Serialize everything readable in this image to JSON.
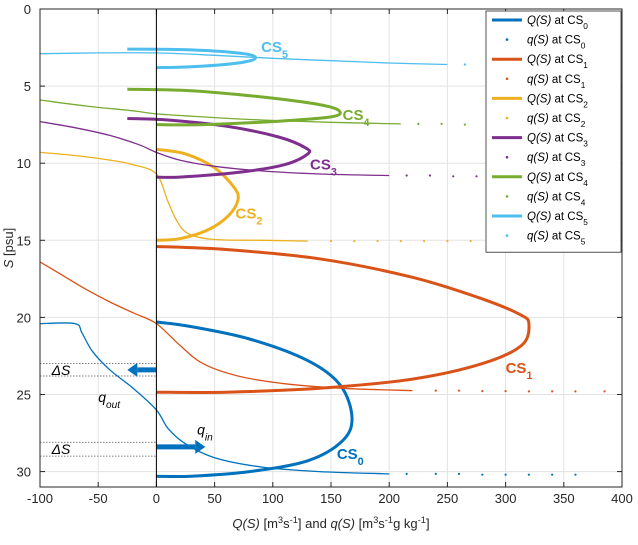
{
  "chart_data": {
    "type": "line",
    "xlabel": "Q(S) [m³s⁻¹]  and  q(S) [m³s⁻¹g kg⁻¹]",
    "xlabel_parts": [
      "Q(S)",
      " [m",
      "3",
      "s",
      "-1",
      "]  and  ",
      "q(S)",
      " [m",
      "3",
      "s",
      "-1",
      "g kg",
      "-1",
      "]"
    ],
    "ylabel_parts": [
      "S",
      " [psu]"
    ],
    "xlim": [
      -100,
      400
    ],
    "ylim": [
      0,
      31
    ],
    "y_reversed": true,
    "grid": true,
    "legend_position": "top-right",
    "xticks": [
      "-100",
      "-50",
      "0",
      "50",
      "100",
      "150",
      "200",
      "250",
      "300",
      "350",
      "400"
    ],
    "yticks": [
      "0",
      "5",
      "10",
      "15",
      "20",
      "25",
      "30"
    ],
    "series": [
      {
        "id": "cs0",
        "color": "#0072BD",
        "legend": {
          "Q": [
            "Q(S)",
            " at CS",
            "0"
          ],
          "q": [
            "q(S)",
            " at CS",
            "0"
          ]
        },
        "label": [
          "CS",
          "0"
        ],
        "Q": [
          [
            0,
            20.3
          ],
          [
            30,
            20.6
          ],
          [
            80,
            21.4
          ],
          [
            130,
            22.8
          ],
          [
            158,
            24.4
          ],
          [
            168,
            26.5
          ],
          [
            160,
            28.0
          ],
          [
            130,
            29.3
          ],
          [
            80,
            30.0
          ],
          [
            30,
            30.3
          ],
          [
            0,
            30.3
          ]
        ],
        "q_line": [
          [
            -100,
            20.4
          ],
          [
            -70,
            20.4
          ],
          [
            -64,
            21.0
          ],
          [
            -55,
            22.2
          ],
          [
            -40,
            23.4
          ],
          [
            -20,
            24.6
          ],
          [
            0,
            26.0
          ],
          [
            10,
            27.2
          ],
          [
            25,
            28.2
          ],
          [
            50,
            29.1
          ],
          [
            90,
            29.7
          ],
          [
            140,
            30.0
          ],
          [
            200,
            30.15
          ]
        ],
        "q_dots": [
          [
            215,
            30.15
          ],
          [
            240,
            30.15
          ],
          [
            260,
            30.15
          ],
          [
            280,
            30.2
          ],
          [
            300,
            30.2
          ],
          [
            320,
            30.2
          ],
          [
            340,
            30.2
          ],
          [
            360,
            30.2
          ]
        ]
      },
      {
        "id": "cs1",
        "color": "#D95319",
        "legend": {
          "Q": [
            "Q(S)",
            " at CS",
            "1"
          ],
          "q": [
            "q(S)",
            " at CS",
            "1"
          ]
        },
        "label": [
          "CS",
          "1"
        ],
        "Q": [
          [
            0,
            15.4
          ],
          [
            60,
            15.6
          ],
          [
            140,
            16.2
          ],
          [
            220,
            17.4
          ],
          [
            280,
            18.8
          ],
          [
            312,
            19.8
          ],
          [
            320,
            20.4
          ],
          [
            314,
            21.8
          ],
          [
            280,
            23.0
          ],
          [
            220,
            24.0
          ],
          [
            140,
            24.6
          ],
          [
            60,
            24.85
          ],
          [
            0,
            24.85
          ]
        ],
        "q_line": [
          [
            -100,
            16.4
          ],
          [
            -80,
            17.3
          ],
          [
            -60,
            18.2
          ],
          [
            -40,
            19.0
          ],
          [
            -20,
            19.7
          ],
          [
            0,
            20.4
          ],
          [
            20,
            21.8
          ],
          [
            40,
            23.0
          ],
          [
            70,
            23.8
          ],
          [
            110,
            24.3
          ],
          [
            160,
            24.6
          ],
          [
            220,
            24.75
          ]
        ],
        "q_dots": [
          [
            240,
            24.75
          ],
          [
            260,
            24.75
          ],
          [
            280,
            24.78
          ],
          [
            300,
            24.78
          ],
          [
            320,
            24.8
          ],
          [
            340,
            24.8
          ],
          [
            360,
            24.8
          ],
          [
            385,
            24.8
          ]
        ]
      },
      {
        "id": "cs2",
        "color": "#EDB120",
        "legend": {
          "Q": [
            "Q(S)",
            " at CS",
            "2"
          ],
          "q": [
            "q(S)",
            " at CS",
            "2"
          ]
        },
        "label": [
          "CS",
          "2"
        ],
        "Q": [
          [
            0,
            9.1
          ],
          [
            25,
            9.4
          ],
          [
            50,
            10.3
          ],
          [
            67,
            11.6
          ],
          [
            70,
            12.4
          ],
          [
            62,
            13.4
          ],
          [
            45,
            14.3
          ],
          [
            20,
            14.9
          ],
          [
            0,
            15.0
          ]
        ],
        "q_line": [
          [
            -100,
            9.3
          ],
          [
            -70,
            9.5
          ],
          [
            -40,
            9.8
          ],
          [
            -20,
            10.1
          ],
          [
            0,
            10.7
          ],
          [
            10,
            12.5
          ],
          [
            18,
            13.8
          ],
          [
            28,
            14.6
          ],
          [
            50,
            14.95
          ],
          [
            90,
            15.0
          ],
          [
            130,
            15.05
          ]
        ],
        "q_dots": [
          [
            150,
            15.05
          ],
          [
            170,
            15.05
          ],
          [
            190,
            15.05
          ],
          [
            210,
            15.05
          ],
          [
            230,
            15.05
          ],
          [
            250,
            15.05
          ],
          [
            270,
            15.05
          ]
        ]
      },
      {
        "id": "cs3",
        "color": "#7E2F8E",
        "legend": {
          "Q": [
            "Q(S)",
            " at CS",
            "3"
          ],
          "q": [
            "q(S)",
            " at CS",
            "3"
          ]
        },
        "label": [
          "CS",
          "3"
        ],
        "Q": [
          [
            -25,
            7.1
          ],
          [
            10,
            7.2
          ],
          [
            60,
            7.6
          ],
          [
            105,
            8.3
          ],
          [
            128,
            9.0
          ],
          [
            130,
            9.4
          ],
          [
            110,
            10.1
          ],
          [
            70,
            10.6
          ],
          [
            20,
            10.9
          ],
          [
            0,
            10.9
          ]
        ],
        "q_line": [
          [
            -100,
            7.3
          ],
          [
            -70,
            7.7
          ],
          [
            -40,
            8.2
          ],
          [
            -15,
            8.8
          ],
          [
            0,
            9.3
          ],
          [
            20,
            9.8
          ],
          [
            50,
            10.2
          ],
          [
            90,
            10.5
          ],
          [
            140,
            10.7
          ],
          [
            200,
            10.8
          ]
        ],
        "q_dots": [
          [
            215,
            10.8
          ],
          [
            235,
            10.8
          ],
          [
            255,
            10.85
          ],
          [
            275,
            10.85
          ],
          [
            295,
            10.85
          ],
          [
            315,
            10.85
          ],
          [
            335,
            10.85
          ],
          [
            355,
            10.85
          ]
        ]
      },
      {
        "id": "cs4",
        "color": "#77AC30",
        "legend": {
          "Q": [
            "Q(S)",
            " at CS",
            "4"
          ],
          "q": [
            "q(S)",
            " at CS",
            "4"
          ]
        },
        "label": [
          "CS",
          "4"
        ],
        "Q": [
          [
            -25,
            5.2
          ],
          [
            30,
            5.3
          ],
          [
            90,
            5.7
          ],
          [
            140,
            6.2
          ],
          [
            157,
            6.6
          ],
          [
            150,
            7.0
          ],
          [
            100,
            7.3
          ],
          [
            40,
            7.5
          ],
          [
            0,
            7.5
          ]
        ],
        "q_line": [
          [
            -100,
            5.9
          ],
          [
            -60,
            6.3
          ],
          [
            -20,
            6.6
          ],
          [
            0,
            6.8
          ],
          [
            40,
            7.0
          ],
          [
            90,
            7.2
          ],
          [
            150,
            7.35
          ],
          [
            210,
            7.45
          ]
        ],
        "q_dots": [
          [
            225,
            7.45
          ],
          [
            245,
            7.45
          ],
          [
            265,
            7.5
          ],
          [
            285,
            7.5
          ],
          [
            305,
            7.5
          ],
          [
            325,
            7.5
          ],
          [
            345,
            7.55
          ]
        ]
      },
      {
        "id": "cs5",
        "color": "#4DBEEE",
        "legend": {
          "Q": [
            "Q(S)",
            " at CS",
            "5"
          ],
          "q": [
            "q(S)",
            " at CS",
            "5"
          ]
        },
        "label": [
          "CS",
          "5"
        ],
        "Q": [
          [
            -25,
            2.6
          ],
          [
            30,
            2.65
          ],
          [
            75,
            2.9
          ],
          [
            85,
            3.2
          ],
          [
            70,
            3.5
          ],
          [
            30,
            3.75
          ],
          [
            0,
            3.8
          ]
        ],
        "q_line": [
          [
            -100,
            2.9
          ],
          [
            -50,
            2.85
          ],
          [
            0,
            2.85
          ],
          [
            50,
            3.0
          ],
          [
            100,
            3.2
          ],
          [
            150,
            3.35
          ],
          [
            200,
            3.5
          ],
          [
            250,
            3.6
          ]
        ],
        "q_dots": [
          [
            265,
            3.6
          ],
          [
            285,
            3.6
          ],
          [
            305,
            3.65
          ],
          [
            325,
            3.65
          ],
          [
            345,
            3.7
          ],
          [
            365,
            3.7
          ],
          [
            385,
            3.7
          ]
        ]
      }
    ],
    "label_positions": [
      [
        155,
        29.2
      ],
      [
        300,
        23.6
      ],
      [
        68,
        13.6
      ],
      [
        132,
        10.4
      ],
      [
        160,
        7.2
      ],
      [
        90,
        2.8
      ]
    ],
    "annotations": {
      "delta_s_top": {
        "text": "ΔS",
        "S_range": [
          23.0,
          23.8
        ],
        "x": -90
      },
      "delta_s_bottom": {
        "text": "ΔS",
        "S_range": [
          28.1,
          29.0
        ],
        "x": -90
      },
      "q_out": {
        "parts": [
          "q",
          "out"
        ],
        "x": -50,
        "S": 25.5
      },
      "q_in": {
        "parts": [
          "q",
          "in"
        ],
        "x": 35,
        "S": 27.6
      },
      "arrow_out": {
        "from": [
          0,
          23.4
        ],
        "to": [
          -25,
          23.4
        ]
      },
      "arrow_in": {
        "from": [
          0,
          28.4
        ],
        "to": [
          42,
          28.4
        ]
      }
    }
  }
}
